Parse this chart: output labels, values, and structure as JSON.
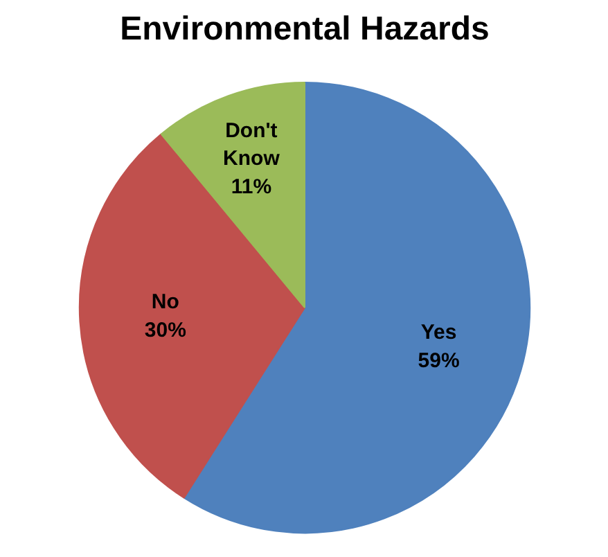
{
  "chart_data": {
    "type": "pie",
    "title": "Environmental Hazards",
    "categories": [
      "Yes",
      "No",
      "Don't Know"
    ],
    "values": [
      59,
      30,
      11
    ],
    "value_labels": [
      "59%",
      "30%",
      "11%"
    ],
    "colors": [
      "#4f81bd",
      "#c0504d",
      "#9bbb59"
    ]
  }
}
